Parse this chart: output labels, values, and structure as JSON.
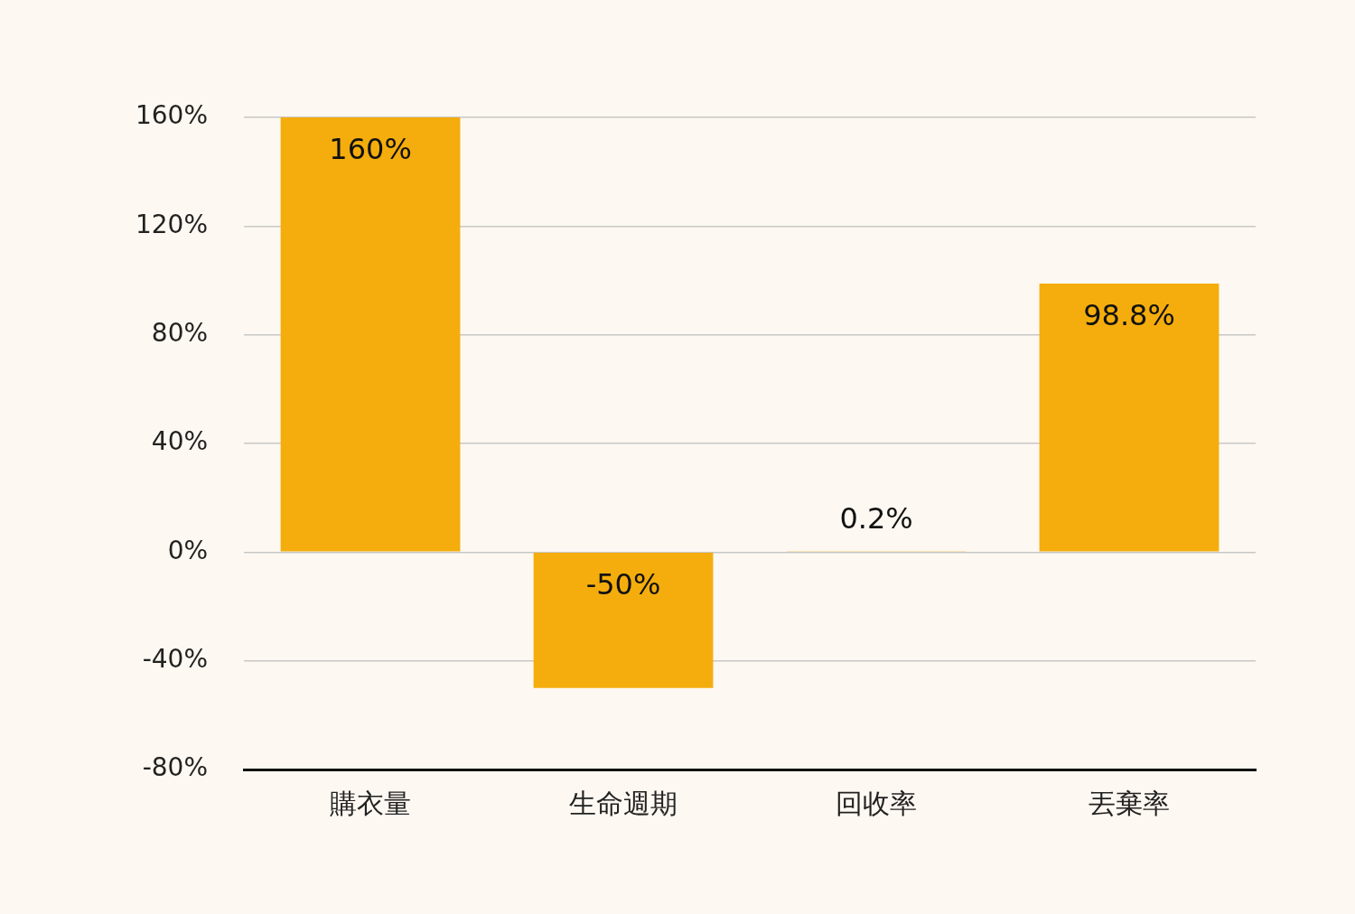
{
  "chart_data": {
    "type": "bar",
    "categories": [
      "購衣量",
      "生命週期",
      "回收率",
      "丟棄率"
    ],
    "values": [
      160,
      -50,
      0.2,
      98.8
    ],
    "color": "#f4ad0c",
    "value_labels": [
      "160%",
      "-50%",
      "0.2%",
      "98.8%"
    ],
    "ylim": [
      -80,
      160
    ],
    "yticks": [
      {
        "value": -80,
        "label": "-80%"
      },
      {
        "value": -40,
        "label": "-40%"
      },
      {
        "value": 0,
        "label": "0%"
      },
      {
        "value": 40,
        "label": "40%"
      },
      {
        "value": 80,
        "label": "80%"
      },
      {
        "value": 120,
        "label": "120%"
      },
      {
        "value": 160,
        "label": "160%"
      }
    ],
    "grid": "y",
    "legend": false
  }
}
